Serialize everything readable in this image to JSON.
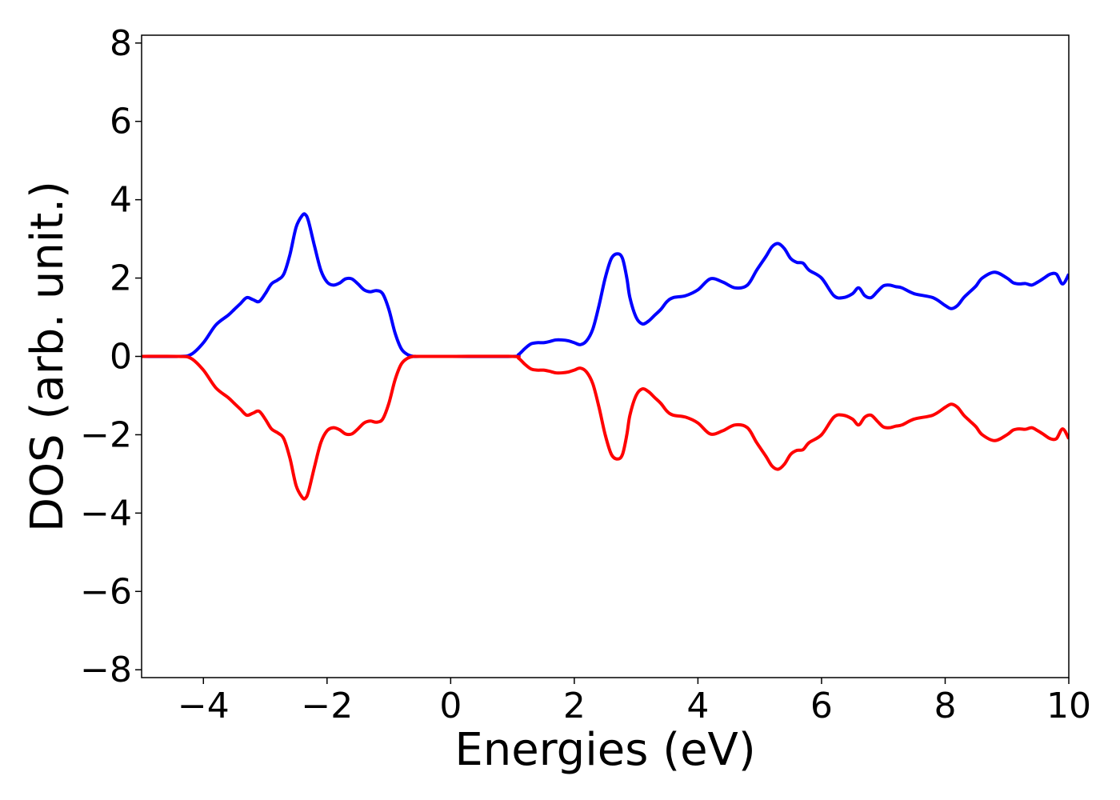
{
  "chart_data": {
    "type": "line",
    "xlabel": "Energies (eV)",
    "ylabel": "DOS (arb. unit.)",
    "xlim": [
      -5,
      10
    ],
    "ylim": [
      -8.2,
      8.2
    ],
    "xticks": [
      -4,
      -2,
      0,
      2,
      4,
      6,
      8,
      10
    ],
    "xtick_labels": [
      "−4",
      "−2",
      "0",
      "2",
      "4",
      "6",
      "8",
      "10"
    ],
    "yticks": [
      -8,
      -6,
      -4,
      -2,
      0,
      2,
      4,
      6,
      8
    ],
    "ytick_labels": [
      "−8",
      "−6",
      "−4",
      "−2",
      "0",
      "2",
      "4",
      "6",
      "8"
    ],
    "grid": false,
    "legend": "none",
    "series": [
      {
        "color": "#0000ff",
        "x": [
          -5.0,
          -4.4,
          -4.2,
          -4.0,
          -3.8,
          -3.6,
          -3.5,
          -3.4,
          -3.3,
          -3.2,
          -3.1,
          -3.0,
          -2.9,
          -2.8,
          -2.7,
          -2.6,
          -2.5,
          -2.4,
          -2.35,
          -2.3,
          -2.2,
          -2.1,
          -2.0,
          -1.9,
          -1.8,
          -1.7,
          -1.6,
          -1.5,
          -1.4,
          -1.3,
          -1.2,
          -1.1,
          -1.0,
          -0.9,
          -0.8,
          -0.7,
          -0.6,
          -0.5,
          0.0,
          1.0,
          1.1,
          1.2,
          1.3,
          1.4,
          1.5,
          1.6,
          1.7,
          1.8,
          1.9,
          2.0,
          2.1,
          2.2,
          2.3,
          2.4,
          2.5,
          2.6,
          2.7,
          2.78,
          2.85,
          2.9,
          3.0,
          3.1,
          3.2,
          3.3,
          3.4,
          3.5,
          3.6,
          3.8,
          4.0,
          4.2,
          4.4,
          4.6,
          4.8,
          4.95,
          5.1,
          5.2,
          5.3,
          5.4,
          5.5,
          5.6,
          5.7,
          5.8,
          6.0,
          6.2,
          6.35,
          6.5,
          6.6,
          6.7,
          6.8,
          6.9,
          7.0,
          7.1,
          7.2,
          7.3,
          7.5,
          7.8,
          8.0,
          8.1,
          8.2,
          8.3,
          8.4,
          8.5,
          8.6,
          8.8,
          9.0,
          9.1,
          9.2,
          9.3,
          9.4,
          9.5,
          9.6,
          9.7,
          9.8,
          9.9,
          10.0
        ],
        "y": [
          0.0,
          0.0,
          0.05,
          0.35,
          0.8,
          1.05,
          1.2,
          1.35,
          1.5,
          1.45,
          1.4,
          1.6,
          1.85,
          1.95,
          2.1,
          2.6,
          3.3,
          3.6,
          3.62,
          3.45,
          2.8,
          2.2,
          1.9,
          1.82,
          1.87,
          1.98,
          1.98,
          1.85,
          1.7,
          1.65,
          1.68,
          1.6,
          1.2,
          0.6,
          0.2,
          0.05,
          0.0,
          0.0,
          0.0,
          0.0,
          0.05,
          0.2,
          0.32,
          0.35,
          0.35,
          0.38,
          0.42,
          0.42,
          0.4,
          0.35,
          0.3,
          0.4,
          0.7,
          1.3,
          2.0,
          2.5,
          2.62,
          2.5,
          2.0,
          1.5,
          1.0,
          0.83,
          0.9,
          1.05,
          1.2,
          1.4,
          1.5,
          1.55,
          1.7,
          1.98,
          1.9,
          1.75,
          1.82,
          2.2,
          2.55,
          2.8,
          2.88,
          2.75,
          2.5,
          2.4,
          2.38,
          2.2,
          2.0,
          1.55,
          1.5,
          1.6,
          1.75,
          1.55,
          1.5,
          1.65,
          1.8,
          1.82,
          1.78,
          1.75,
          1.6,
          1.5,
          1.3,
          1.22,
          1.3,
          1.5,
          1.65,
          1.8,
          2.0,
          2.15,
          2.0,
          1.88,
          1.85,
          1.86,
          1.82,
          1.9,
          2.0,
          2.1,
          2.1,
          1.85,
          2.1
        ]
      },
      {
        "color": "#ff0000",
        "x": [
          -5.0,
          -4.4,
          -4.2,
          -4.0,
          -3.8,
          -3.6,
          -3.5,
          -3.4,
          -3.3,
          -3.2,
          -3.1,
          -3.0,
          -2.9,
          -2.8,
          -2.7,
          -2.6,
          -2.5,
          -2.4,
          -2.35,
          -2.3,
          -2.2,
          -2.1,
          -2.0,
          -1.9,
          -1.8,
          -1.7,
          -1.6,
          -1.5,
          -1.4,
          -1.3,
          -1.2,
          -1.1,
          -1.0,
          -0.9,
          -0.8,
          -0.7,
          -0.6,
          -0.5,
          0.0,
          1.0,
          1.1,
          1.2,
          1.3,
          1.4,
          1.5,
          1.6,
          1.7,
          1.8,
          1.9,
          2.0,
          2.1,
          2.2,
          2.3,
          2.4,
          2.5,
          2.6,
          2.7,
          2.78,
          2.85,
          2.9,
          3.0,
          3.1,
          3.2,
          3.3,
          3.4,
          3.5,
          3.6,
          3.8,
          4.0,
          4.2,
          4.4,
          4.6,
          4.8,
          4.95,
          5.1,
          5.2,
          5.3,
          5.4,
          5.5,
          5.6,
          5.7,
          5.8,
          6.0,
          6.2,
          6.35,
          6.5,
          6.6,
          6.7,
          6.8,
          6.9,
          7.0,
          7.1,
          7.2,
          7.3,
          7.5,
          7.8,
          8.0,
          8.1,
          8.2,
          8.3,
          8.4,
          8.5,
          8.6,
          8.8,
          9.0,
          9.1,
          9.2,
          9.3,
          9.4,
          9.5,
          9.6,
          9.7,
          9.8,
          9.9,
          10.0
        ],
        "y": [
          0.0,
          0.0,
          -0.05,
          -0.35,
          -0.8,
          -1.05,
          -1.2,
          -1.35,
          -1.5,
          -1.45,
          -1.4,
          -1.6,
          -1.85,
          -1.95,
          -2.1,
          -2.6,
          -3.3,
          -3.6,
          -3.62,
          -3.45,
          -2.8,
          -2.2,
          -1.9,
          -1.82,
          -1.87,
          -1.98,
          -1.98,
          -1.85,
          -1.7,
          -1.65,
          -1.68,
          -1.6,
          -1.2,
          -0.6,
          -0.2,
          -0.05,
          0.0,
          0.0,
          0.0,
          0.0,
          -0.05,
          -0.2,
          -0.32,
          -0.35,
          -0.35,
          -0.38,
          -0.42,
          -0.42,
          -0.4,
          -0.35,
          -0.3,
          -0.4,
          -0.7,
          -1.3,
          -2.0,
          -2.5,
          -2.62,
          -2.5,
          -2.0,
          -1.5,
          -1.0,
          -0.83,
          -0.9,
          -1.05,
          -1.2,
          -1.4,
          -1.5,
          -1.55,
          -1.7,
          -1.98,
          -1.9,
          -1.75,
          -1.82,
          -2.2,
          -2.55,
          -2.8,
          -2.88,
          -2.75,
          -2.5,
          -2.4,
          -2.38,
          -2.2,
          -2.0,
          -1.55,
          -1.5,
          -1.6,
          -1.75,
          -1.55,
          -1.5,
          -1.65,
          -1.8,
          -1.82,
          -1.78,
          -1.75,
          -1.6,
          -1.5,
          -1.3,
          -1.22,
          -1.3,
          -1.5,
          -1.65,
          -1.8,
          -2.0,
          -2.15,
          -2.0,
          -1.88,
          -1.85,
          -1.86,
          -1.82,
          -1.9,
          -2.0,
          -2.1,
          -2.1,
          -1.85,
          -2.1
        ]
      }
    ]
  }
}
